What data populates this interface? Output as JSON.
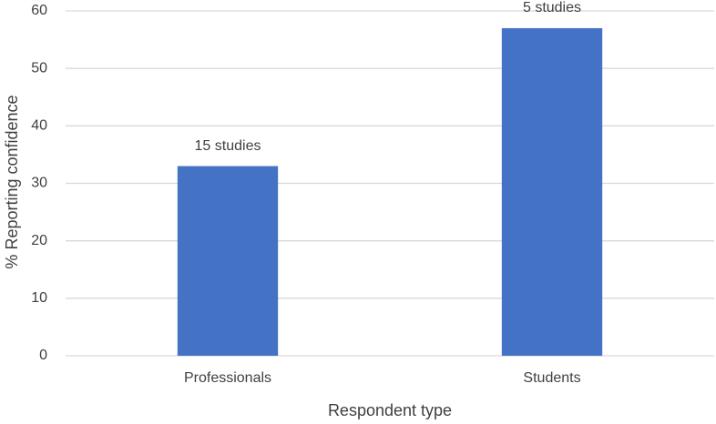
{
  "chart_data": {
    "type": "bar",
    "x_label": "Respondent type",
    "y_label": "% Reporting confidence",
    "categories": [
      "Professionals",
      "Students"
    ],
    "values": [
      33,
      57
    ],
    "bar_labels": [
      "15 studies",
      "5 studies"
    ],
    "color": "#4472c4",
    "ylim": [
      0,
      60
    ],
    "yticks": [
      0,
      10,
      20,
      30,
      40,
      50,
      60
    ],
    "grid": true
  }
}
